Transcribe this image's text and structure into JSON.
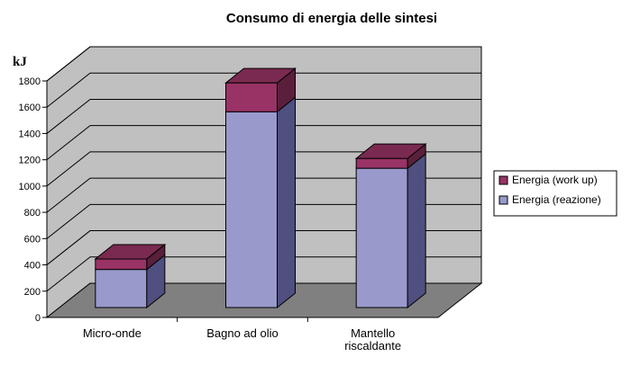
{
  "chart_data": {
    "type": "bar",
    "stacked": true,
    "three_d": true,
    "title": "Consumo di energia delle sintesi",
    "ylabel": "kJ",
    "xlabel": "",
    "ylim": [
      0,
      1800
    ],
    "yticks": [
      0,
      200,
      400,
      600,
      800,
      1000,
      1200,
      1400,
      1600,
      1800
    ],
    "grid": true,
    "legend_position": "right",
    "categories": [
      [
        "Micro-onde"
      ],
      [
        "Bagno ad olio"
      ],
      [
        "Mantello",
        "riscaldante"
      ]
    ],
    "series": [
      {
        "name": "Energia (reazione)",
        "color": "#9999cc",
        "values": [
          290,
          1490,
          1060
        ]
      },
      {
        "name": "Energia (work up)",
        "color": "#993366",
        "values": [
          80,
          220,
          75
        ]
      }
    ],
    "legend": [
      "Energia (work up)",
      "Energia (reazione)"
    ],
    "colors": {
      "wall": "#c0c0c0",
      "floor": "#808080",
      "reazione_front": "#9999cc",
      "reazione_side": "#4f4f80",
      "workup_front": "#993366",
      "workup_top": "#7a2a50",
      "workup_side": "#5a1f3b"
    }
  }
}
